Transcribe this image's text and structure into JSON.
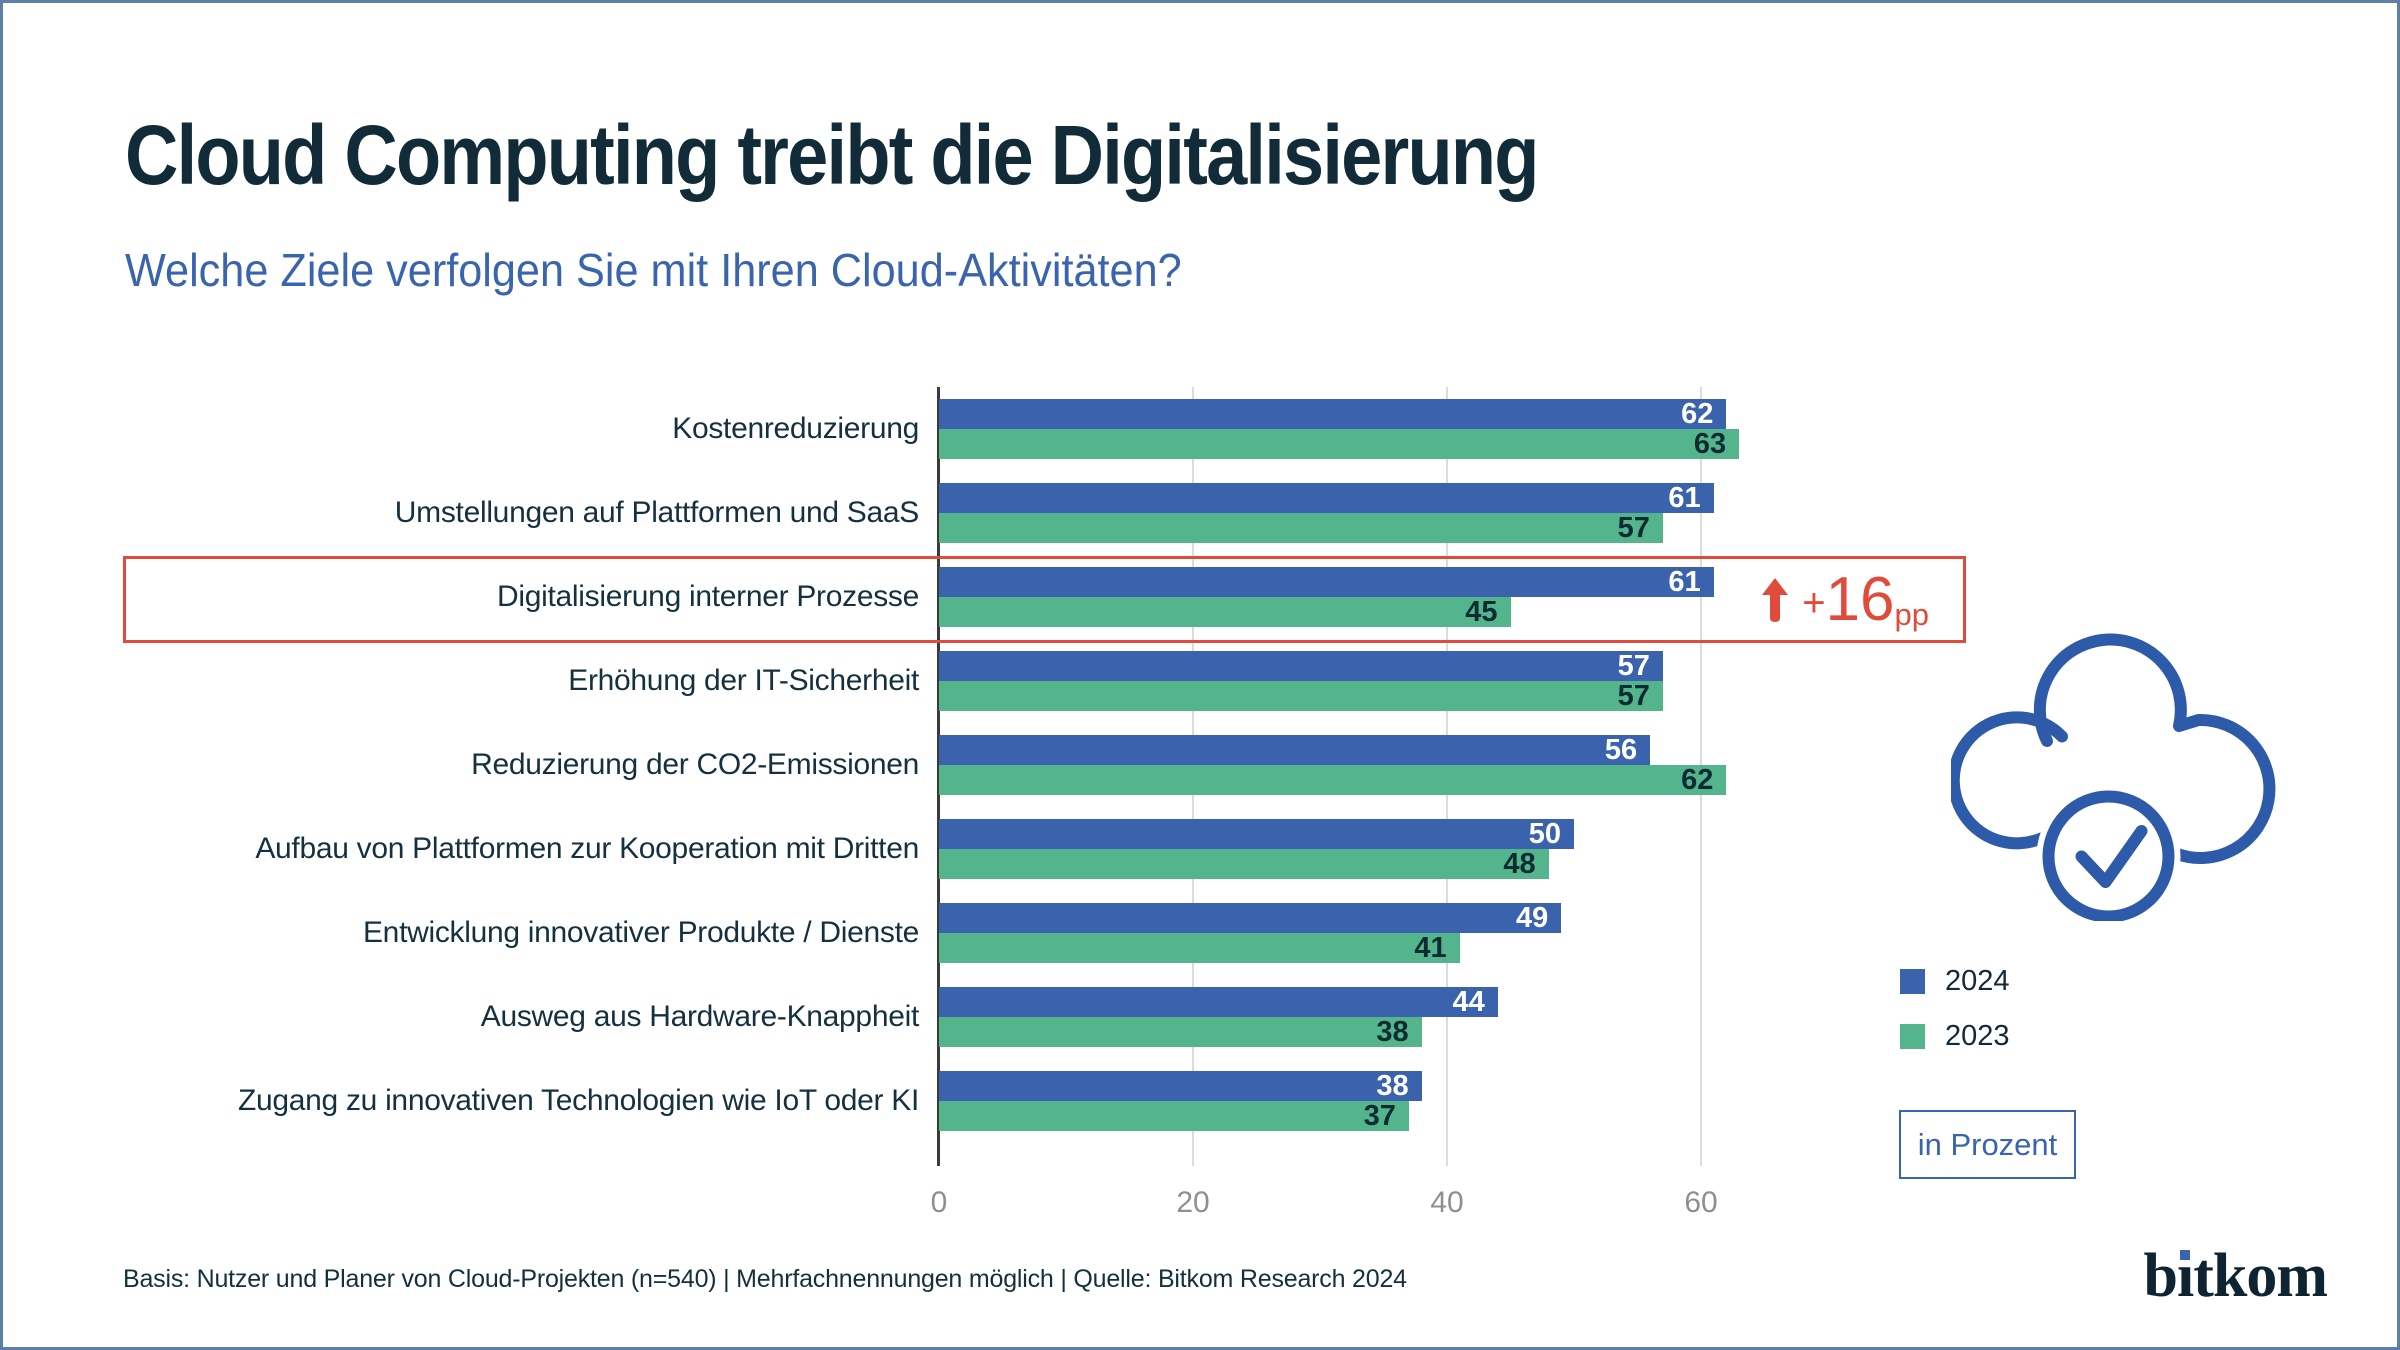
{
  "page": {
    "title": "Cloud Computing treibt die Digitalisierung",
    "subtitle": "Welche Ziele verfolgen Sie mit Ihren Cloud-Aktivitäten?",
    "footer": "Basis: Nutzer und Planer von Cloud-Projekten (n=540) | Mehrfachnennungen möglich | Quelle: Bitkom Research 2024",
    "brand": "bitkom",
    "unit_label": "in Prozent"
  },
  "colors": {
    "title_text": "#122b38",
    "subtitle_text": "#3a64ae",
    "bar_2024": "#3a62ad",
    "bar_2023": "#54b58c",
    "highlight_red": "#e14b3b",
    "gridline": "#dcdcdc",
    "axis_line": "#3a3a3a",
    "tick_text": "#8f8f8f",
    "canvas_border": "#5d80a5"
  },
  "chart_data": {
    "type": "bar",
    "orientation": "horizontal",
    "title": "Welche Ziele verfolgen Sie mit Ihren Cloud-Aktivitäten?",
    "xlabel": "in Prozent",
    "ylabel": "",
    "xlim": [
      0,
      66
    ],
    "xticks": [
      0,
      20,
      40,
      60
    ],
    "grid": true,
    "legend_position": "right",
    "categories": [
      "Kostenreduzierung",
      "Umstellungen auf Plattformen und SaaS",
      "Digitalisierung interner Prozesse",
      "Erhöhung der IT-Sicherheit",
      "Reduzierung der CO2-Emissionen",
      "Aufbau von Plattformen zur Kooperation mit Dritten",
      "Entwicklung innovativer Produkte / Dienste",
      "Ausweg aus Hardware-Knappheit",
      "Zugang zu innovativen Technologien wie IoT oder KI"
    ],
    "series": [
      {
        "name": "2024",
        "color": "#3a62ad",
        "label_color": "#ffffff",
        "values": [
          62,
          61,
          61,
          57,
          56,
          50,
          49,
          44,
          38
        ]
      },
      {
        "name": "2023",
        "color": "#54b58c",
        "label_color": "#0d2b33",
        "values": [
          63,
          57,
          45,
          57,
          62,
          48,
          41,
          38,
          37
        ]
      }
    ],
    "annotation": {
      "row_index": 2,
      "plus": "+",
      "label": "16",
      "sub": "pp",
      "direction": "up"
    }
  },
  "legend": {
    "items": [
      {
        "label": "2024",
        "color": "#3a62ad"
      },
      {
        "label": "2023",
        "color": "#54b58c"
      }
    ]
  }
}
